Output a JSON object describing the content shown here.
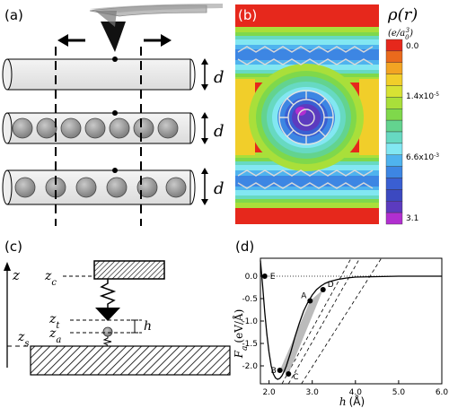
{
  "panels": {
    "a": {
      "label": "(a)",
      "dim_label": "d"
    },
    "b": {
      "label": "(b)",
      "legend_title": "ρ(r)",
      "legend_unit": "(e/a",
      "legend_unit_sub": "0",
      "legend_unit_sup": "3",
      "legend_unit_close": ")",
      "colorbar_ticks": [
        "0.0",
        "1.4x10",
        "6.6x10",
        "3.1"
      ],
      "tick_exponents": [
        "-5",
        "-3"
      ],
      "colorbar_colors": [
        "#e6281c",
        "#ea6a1c",
        "#f2a423",
        "#f1ce2a",
        "#d7e234",
        "#a9df3a",
        "#7fd84b",
        "#63d38f",
        "#67d9c2",
        "#82e7f2",
        "#4fb3ee",
        "#3d86e3",
        "#3a5fd2",
        "#3c49c0",
        "#5c3bbf",
        "#b12fd0"
      ]
    },
    "c": {
      "label": "(c)",
      "axis_label": "z",
      "zc": "z",
      "zc_sub": "c",
      "zt": "z",
      "zt_sub": "t",
      "za": "z",
      "za_sub": "a",
      "zs": "z",
      "zs_sub": "s",
      "h": "h"
    },
    "d": {
      "label": "(d)",
      "ylabel_main": "F",
      "ylabel_sub": "a",
      "ylabel_unit": "(eV/Å)",
      "xlabel_main": "h",
      "xlabel_unit": "(Å)",
      "points": [
        "A",
        "B",
        "C",
        "D",
        "E"
      ]
    }
  },
  "chart_data": {
    "type": "line",
    "xlabel": "h (Å)",
    "ylabel": "F_a (eV/Å)",
    "xlim": [
      1.8,
      6.0
    ],
    "ylim": [
      -2.4,
      0.4
    ],
    "xticks": [
      "2.0",
      "3.0",
      "4.0",
      "5.0",
      "6.0"
    ],
    "yticks": [
      "0.0",
      "-0.5",
      "-1.0",
      "-1.5",
      "-2.0"
    ],
    "xtick_values": [
      2.0,
      3.0,
      4.0,
      5.0,
      6.0
    ],
    "ytick_values": [
      0.0,
      -0.5,
      -1.0,
      -1.5,
      -2.0
    ],
    "series": [
      {
        "x": [
          1.8,
          1.85,
          1.9,
          1.95,
          2.0,
          2.05,
          2.1,
          2.15,
          2.2,
          2.25,
          2.3,
          2.35,
          2.4,
          2.5,
          2.6,
          2.7,
          2.8,
          2.9,
          3.0,
          3.1,
          3.2,
          3.3,
          3.4,
          3.6,
          3.8,
          4.0,
          4.5,
          5.0,
          6.0
        ],
        "y": [
          0.35,
          -0.2,
          -0.8,
          -1.3,
          -1.7,
          -2.0,
          -2.18,
          -2.27,
          -2.3,
          -2.28,
          -2.22,
          -2.12,
          -2.0,
          -1.7,
          -1.35,
          -1.05,
          -0.78,
          -0.58,
          -0.42,
          -0.3,
          -0.22,
          -0.16,
          -0.12,
          -0.07,
          -0.04,
          -0.02,
          -0.01,
          0.0,
          0.0
        ]
      }
    ],
    "labeled_points": [
      {
        "name": "A",
        "x": 2.95,
        "y": -0.55
      },
      {
        "name": "B",
        "x": 2.25,
        "y": -2.1
      },
      {
        "name": "C",
        "x": 2.45,
        "y": -2.18
      },
      {
        "name": "D",
        "x": 3.25,
        "y": -0.3
      },
      {
        "name": "E",
        "x": 1.9,
        "y": 0.0
      }
    ]
  }
}
